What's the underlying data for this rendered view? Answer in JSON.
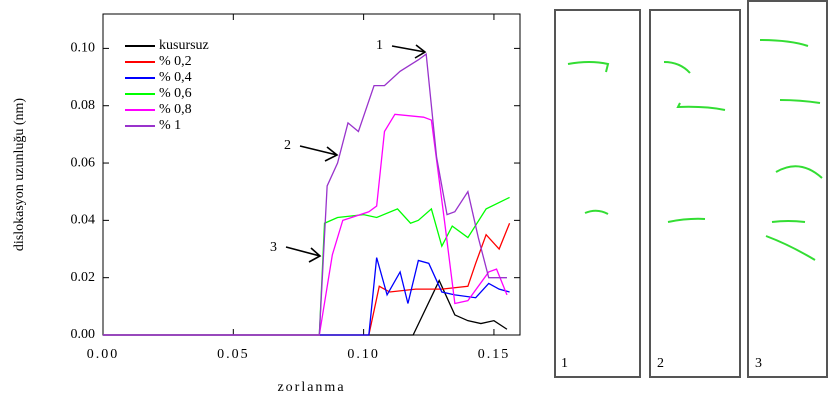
{
  "chart_data": {
    "type": "line",
    "x_label": "zorlanma",
    "y_label": "dislokasyon uzunluğu (nm)",
    "xlim": [
      0,
      0.16
    ],
    "ylim": [
      0,
      0.112
    ],
    "xticks": [
      {
        "value": 0,
        "label": "0.00"
      },
      {
        "value": 0.05,
        "label": "0.05"
      },
      {
        "value": 0.1,
        "label": "0.10"
      },
      {
        "value": 0.15,
        "label": "0.15"
      }
    ],
    "yticks": [
      {
        "value": 0,
        "label": "0.00"
      },
      {
        "value": 0.02,
        "label": "0.02"
      },
      {
        "value": 0.04,
        "label": "0.04"
      },
      {
        "value": 0.06,
        "label": "0.06"
      },
      {
        "value": 0.08,
        "label": "0.08"
      },
      {
        "value": 0.1,
        "label": "0.10"
      }
    ],
    "legend": "upper left",
    "series": [
      {
        "name": "kusursuz",
        "color": "#000000",
        "x": [
          0,
          0.119,
          0.129,
          0.135,
          0.14,
          0.145,
          0.15,
          0.155
        ],
        "values": [
          0,
          0,
          0.019,
          0.007,
          0.005,
          0.004,
          0.005,
          0.002
        ]
      },
      {
        "name": "% 0,2",
        "color": "#ff0000",
        "x": [
          0,
          0.102,
          0.106,
          0.11,
          0.12,
          0.13,
          0.14,
          0.143,
          0.147,
          0.152,
          0.156
        ],
        "values": [
          0,
          0,
          0.017,
          0.015,
          0.016,
          0.016,
          0.017,
          0.025,
          0.035,
          0.03,
          0.039
        ]
      },
      {
        "name": "% 0,4",
        "color": "#0000ff",
        "x": [
          0,
          0.102,
          0.105,
          0.109,
          0.114,
          0.117,
          0.121,
          0.125,
          0.13,
          0.135,
          0.143,
          0.148,
          0.152,
          0.156
        ],
        "values": [
          0,
          0,
          0.027,
          0.014,
          0.022,
          0.011,
          0.026,
          0.025,
          0.015,
          0.014,
          0.013,
          0.018,
          0.016,
          0.015
        ]
      },
      {
        "name": "% 0,6",
        "color": "#00ff00",
        "x": [
          0,
          0.083,
          0.085,
          0.09,
          0.1,
          0.105,
          0.113,
          0.118,
          0.121,
          0.126,
          0.13,
          0.134,
          0.14,
          0.147,
          0.156
        ],
        "values": [
          0,
          0,
          0.039,
          0.041,
          0.042,
          0.041,
          0.044,
          0.039,
          0.04,
          0.044,
          0.031,
          0.038,
          0.034,
          0.044,
          0.048
        ]
      },
      {
        "name": "% 0,8",
        "color": "#ff00ff",
        "x": [
          0,
          0.083,
          0.088,
          0.092,
          0.102,
          0.105,
          0.108,
          0.112,
          0.123,
          0.126,
          0.131,
          0.135,
          0.14,
          0.148,
          0.151,
          0.155
        ],
        "values": [
          0,
          0,
          0.028,
          0.04,
          0.043,
          0.045,
          0.071,
          0.077,
          0.076,
          0.075,
          0.04,
          0.011,
          0.012,
          0.022,
          0.023,
          0.014
        ]
      },
      {
        "name": "% 1",
        "color": "#9933cc",
        "x": [
          0,
          0.083,
          0.086,
          0.09,
          0.094,
          0.098,
          0.104,
          0.108,
          0.114,
          0.121,
          0.124,
          0.128,
          0.132,
          0.135,
          0.14,
          0.144,
          0.148,
          0.155
        ],
        "values": [
          0,
          0,
          0.052,
          0.06,
          0.074,
          0.071,
          0.087,
          0.087,
          0.092,
          0.096,
          0.098,
          0.062,
          0.042,
          0.043,
          0.05,
          0.034,
          0.02,
          0.02
        ]
      }
    ],
    "annotations": [
      "1",
      "2",
      "3"
    ],
    "panels": [
      "1",
      "2",
      "3"
    ]
  }
}
